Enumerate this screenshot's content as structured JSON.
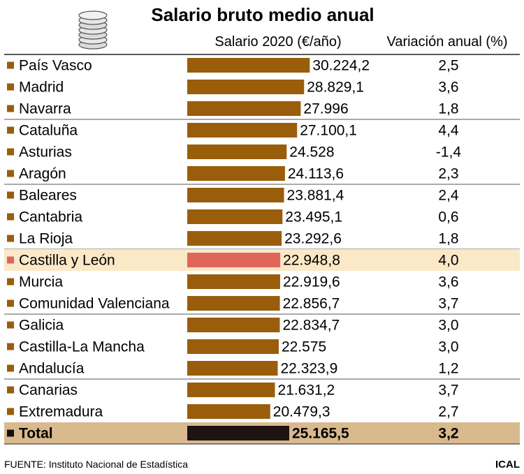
{
  "title": "Salario bruto medio anual",
  "column_headers": {
    "salary": "Salario 2020 (€/año)",
    "variation": "Variación anual (%)"
  },
  "footer": {
    "source": "FUENTE: Instituto Nacional de Estadística",
    "brand": "ICAL"
  },
  "colors": {
    "bar": "#9a5d0b",
    "highlight_bar": "#e0665a",
    "highlight_row_bg": "#fbe8c7",
    "total_bar": "#1e1212",
    "total_row_bg": "#d9b98e",
    "bullet": "#9a5d0b"
  },
  "icon": "stacked-coins-icon",
  "chart_data": {
    "type": "bar",
    "orientation": "horizontal",
    "title": "Salario bruto medio anual",
    "xlabel": "Salario 2020 (€/año)",
    "ylabel": "",
    "categories": [
      "País Vasco",
      "Madrid",
      "Navarra",
      "Cataluña",
      "Asturias",
      "Aragón",
      "Baleares",
      "Cantabria",
      "La Rioja",
      "Castilla y León",
      "Murcia",
      "Comunidad Valenciana",
      "Galicia",
      "Castilla-La Mancha",
      "Andalucía",
      "Canarias",
      "Extremadura",
      "Total"
    ],
    "values": [
      30224.2,
      28829.1,
      27996,
      27100.1,
      24528,
      24113.6,
      23881.4,
      23495.1,
      23292.6,
      22948.8,
      22919.6,
      22856.7,
      22834.7,
      22575,
      22323.9,
      21631.2,
      20479.3,
      25165.5
    ],
    "value_labels": [
      "30.224,2",
      "28.829,1",
      "27.996",
      "27.100,1",
      "24.528",
      "24.113,6",
      "23.881,4",
      "23.495,1",
      "23.292,6",
      "22.948,8",
      "22.919,6",
      "22.856,7",
      "22.834,7",
      "22.575",
      "22.323,9",
      "21.631,2",
      "20.479,3",
      "25.165,5"
    ],
    "variation": [
      2.5,
      3.6,
      1.8,
      4.4,
      -1.4,
      2.3,
      2.4,
      0.6,
      1.8,
      4.0,
      3.6,
      3.7,
      3.0,
      3.0,
      1.2,
      3.7,
      2.7,
      3.2
    ],
    "variation_labels": [
      "2,5",
      "3,6",
      "1,8",
      "4,4",
      "-1,4",
      "2,3",
      "2,4",
      "0,6",
      "1,8",
      "4,0",
      "3,6",
      "3,7",
      "3,0",
      "3,0",
      "1,2",
      "3,7",
      "2,7",
      "3,2"
    ],
    "highlight": "Castilla y León",
    "total_label": "Total",
    "xlim": [
      0,
      31200
    ],
    "grid": false,
    "legend": "none"
  }
}
